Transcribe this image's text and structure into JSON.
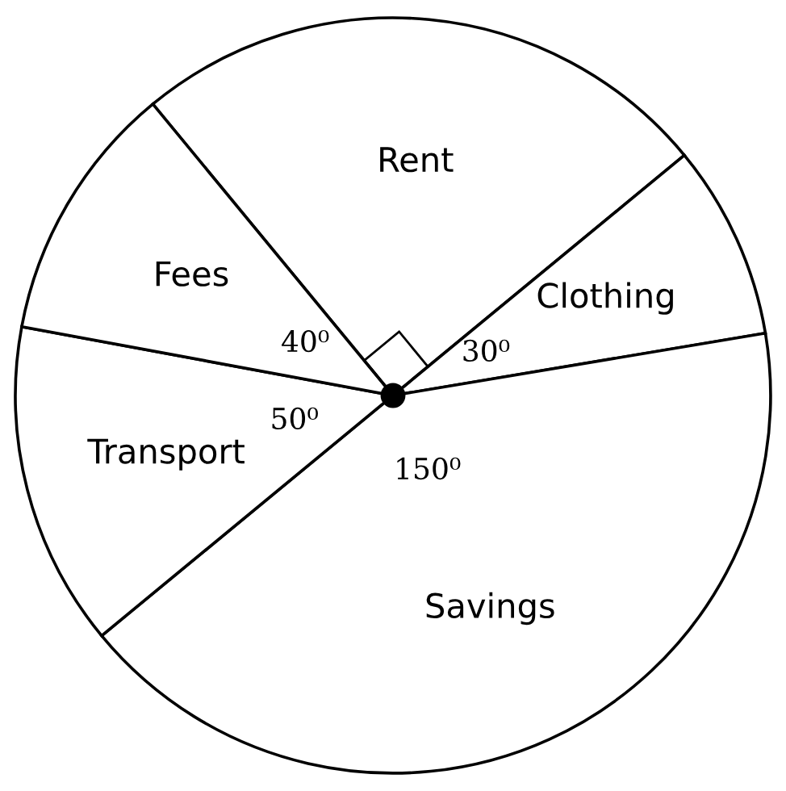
{
  "chart_data": {
    "type": "pie",
    "categories": [
      "Rent",
      "Clothing",
      "Savings",
      "Transport",
      "Fees"
    ],
    "values": [
      90,
      30,
      150,
      50,
      40
    ],
    "colors": [
      "#ffffff",
      "#ffffff",
      "#ffffff",
      "#ffffff",
      "#ffffff"
    ],
    "value_labels": [
      null,
      "30⁰",
      "150⁰",
      "50⁰",
      "40⁰"
    ],
    "legend": false
  }
}
